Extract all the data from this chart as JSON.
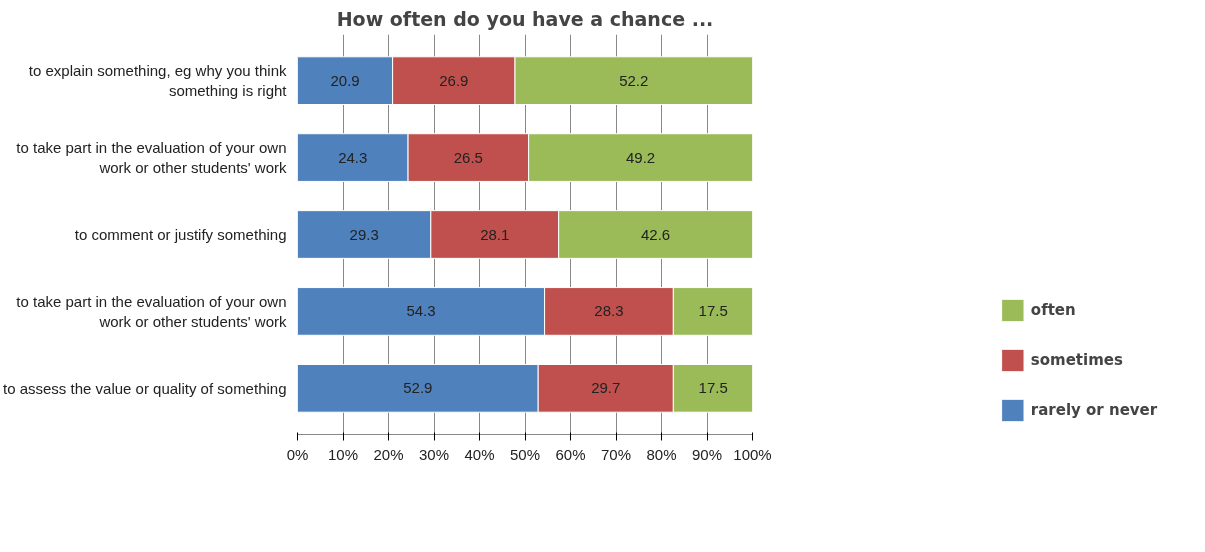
{
  "chart_data": {
    "type": "bar",
    "orientation": "horizontal",
    "stacked": true,
    "title": "How often do you have a chance ...",
    "categories": [
      "to explain something, eg why you think something is right",
      "to take part in the evaluation of your own work or other students' work",
      "to comment or justify something",
      "to take part in the evaluation of your own work or other students' work",
      "to assess the value or quality of something"
    ],
    "series": [
      {
        "name": "rarely or never",
        "color": "#4f81bd",
        "values": [
          20.9,
          24.3,
          29.3,
          54.3,
          52.9
        ]
      },
      {
        "name": "sometimes",
        "color": "#c0504d",
        "values": [
          26.9,
          26.5,
          28.1,
          28.3,
          29.7
        ]
      },
      {
        "name": "often",
        "color": "#9bbb59",
        "values": [
          52.2,
          49.2,
          42.6,
          17.5,
          17.5
        ]
      }
    ],
    "xlim": [
      0,
      100
    ],
    "xticks": [
      {
        "value": 0,
        "label": "0%"
      },
      {
        "value": 10,
        "label": "10%"
      },
      {
        "value": 20,
        "label": "20%"
      },
      {
        "value": 30,
        "label": "30%"
      },
      {
        "value": 40,
        "label": "40%"
      },
      {
        "value": 50,
        "label": "50%"
      },
      {
        "value": 60,
        "label": "60%"
      },
      {
        "value": 70,
        "label": "70%"
      },
      {
        "value": 80,
        "label": "80%"
      },
      {
        "value": 90,
        "label": "90%"
      },
      {
        "value": 100,
        "label": "100%"
      }
    ],
    "grid": "x",
    "legend": "right",
    "data_labels": true
  }
}
